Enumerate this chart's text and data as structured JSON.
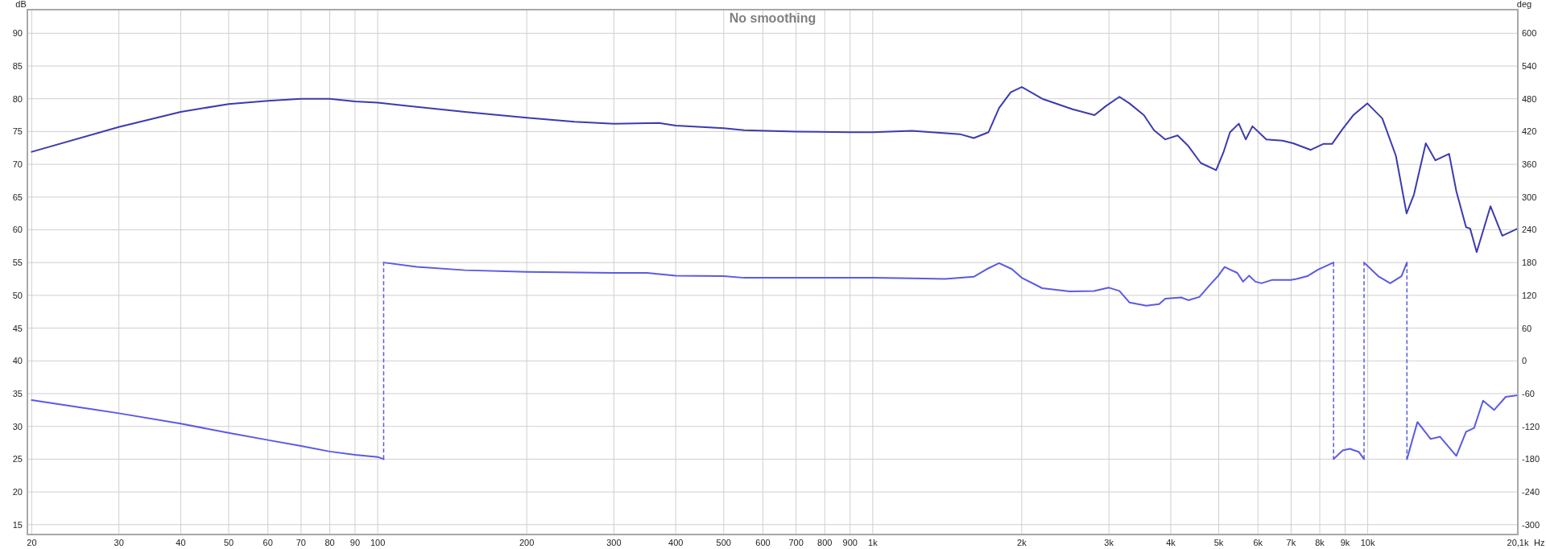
{
  "chart_data": {
    "type": "line",
    "title": "No smoothing",
    "xlabel": "Hz",
    "ylabel": "dB",
    "y2label": "deg",
    "log": "x",
    "grid": true,
    "xlim": [
      19.6,
      20100
    ],
    "xticks": [
      20,
      30,
      40,
      50,
      60,
      70,
      80,
      90,
      100,
      200,
      300,
      400,
      500,
      600,
      700,
      800,
      900,
      {
        "value": 1000,
        "label": "1k"
      },
      {
        "value": 2000,
        "label": "2k"
      },
      {
        "value": 3000,
        "label": "3k"
      },
      {
        "value": 4000,
        "label": "4k"
      },
      {
        "value": 5000,
        "label": "5k"
      },
      {
        "value": 6000,
        "label": "6k"
      },
      {
        "value": 7000,
        "label": "7k"
      },
      {
        "value": 8000,
        "label": "8k"
      },
      {
        "value": 9000,
        "label": "9k"
      },
      {
        "value": 10000,
        "label": "10k"
      },
      {
        "value": 20100,
        "label": "20,1k"
      }
    ],
    "ylim": [
      13.5,
      93.6
    ],
    "yticks": [
      15,
      20,
      25,
      30,
      35,
      40,
      45,
      50,
      55,
      60,
      65,
      70,
      75,
      80,
      85,
      90
    ],
    "y2lim": [
      -318,
      643
    ],
    "y2ticks": [
      -300,
      -240,
      -180,
      -120,
      -60,
      0,
      60,
      120,
      180,
      240,
      300,
      360,
      420,
      480,
      540,
      600
    ],
    "series": [
      {
        "color": "#3b3bb0",
        "x": [
          20,
          30,
          40,
          50,
          60,
          70,
          80,
          90,
          100,
          150,
          200,
          250,
          300,
          370,
          400,
          500,
          550,
          700,
          900,
          1000,
          1200,
          1500,
          1600,
          1714,
          1800,
          1900,
          2000,
          2200,
          2535,
          2806,
          2960,
          3150,
          3300,
          3530,
          3700,
          3900,
          4130,
          4340,
          4600,
          4940,
          5110,
          5270,
          5490,
          5670,
          5850,
          6240,
          6730,
          7070,
          7670,
          8130,
          8470,
          8900,
          9350,
          9980,
          10700,
          11400,
          11980,
          12400,
          13100,
          13700,
          14600,
          15100,
          15800,
          16100,
          16600,
          17700,
          18700,
          20100
        ],
        "values": [
          71.9,
          75.7,
          78,
          79.2,
          79.7,
          80,
          80,
          79.6,
          79.4,
          78,
          77.1,
          76.5,
          76.2,
          76.3,
          75.9,
          75.5,
          75.2,
          75,
          74.9,
          74.9,
          75.1,
          74.6,
          74,
          74.9,
          78.6,
          81,
          81.8,
          80,
          78.4,
          77.5,
          78.9,
          80.3,
          79.3,
          77.5,
          75.2,
          73.8,
          74.4,
          72.8,
          70.2,
          69.1,
          71.8,
          74.9,
          76.2,
          73.8,
          75.8,
          73.8,
          73.6,
          73.2,
          72.2,
          73.1,
          73.1,
          75.4,
          77.5,
          79.3,
          77,
          71.3,
          62.5,
          65.4,
          73.2,
          70.6,
          71.6,
          65.9,
          60.4,
          60.2,
          56.6,
          63.6,
          59.1,
          60.2
        ]
      },
      {
        "color": "#5a5ae6",
        "axis": "y2",
        "x": [
          20,
          30,
          40,
          50,
          60,
          70,
          80,
          90,
          100,
          102.8,
          102.8,
          120,
          150,
          200,
          300,
          350,
          400,
          500,
          550,
          1000,
          1200,
          1400,
          1600,
          1700,
          1800,
          1910,
          2000,
          2200,
          2500,
          2800,
          3000,
          3150,
          3300,
          3570,
          3790,
          3900,
          4200,
          4340,
          4570,
          4800,
          4980,
          5140,
          5270,
          5450,
          5600,
          5760,
          5930,
          6100,
          6400,
          7000,
          7180,
          7550,
          7940,
          8530,
          8530,
          8900,
          9200,
          9600,
          9830,
          9830,
          10500,
          11100,
          11700,
          12000,
          12000,
          12600,
          13400,
          14000,
          15100,
          15800,
          16400,
          17100,
          18000,
          19000,
          20100
        ],
        "values": [
          -72,
          -96,
          -115,
          -132,
          -145,
          -156,
          -166,
          -172,
          -176,
          -180,
          180,
          172,
          166,
          163,
          161,
          161,
          156,
          155,
          152,
          152,
          151,
          150,
          154,
          168,
          179,
          168,
          152,
          133,
          127,
          128,
          134,
          128,
          107,
          101,
          104,
          114,
          116,
          111,
          117,
          139,
          155,
          172,
          167,
          161,
          145,
          156,
          145,
          142,
          148,
          148,
          150,
          155,
          167,
          180,
          -180,
          -164,
          -161,
          -167,
          -180,
          180,
          155,
          142,
          155,
          180,
          -180,
          -112,
          -143,
          -139,
          -174,
          -130,
          -123,
          -73,
          -90,
          -66,
          -63
        ]
      }
    ]
  }
}
